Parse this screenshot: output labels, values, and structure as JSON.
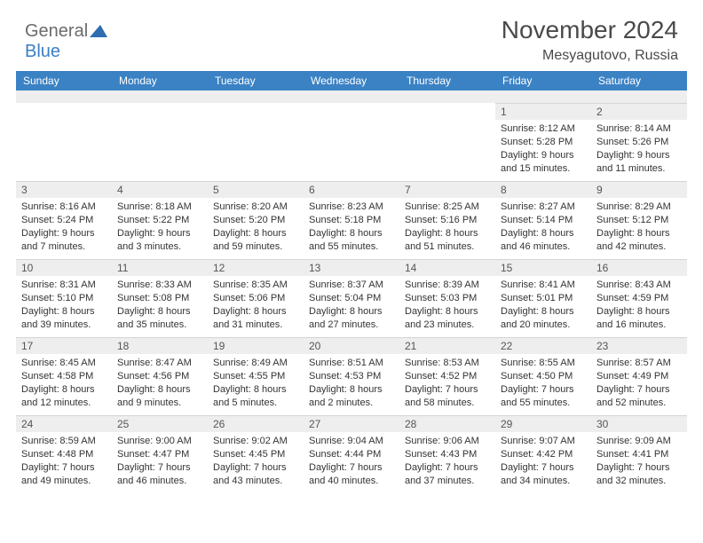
{
  "logo": {
    "text1": "General",
    "text2": "Blue",
    "color_gray": "#6b6b6b",
    "color_blue": "#3b7fc4",
    "shape_color": "#2f6db0"
  },
  "title": "November 2024",
  "location": "Mesyagutovo, Russia",
  "header_bg": "#3b82c4",
  "header_fg": "#ffffff",
  "daynum_bg": "#eeeeee",
  "text_color": "#333333",
  "day_names": [
    "Sunday",
    "Monday",
    "Tuesday",
    "Wednesday",
    "Thursday",
    "Friday",
    "Saturday"
  ],
  "weeks": [
    [
      null,
      null,
      null,
      null,
      null,
      {
        "n": "1",
        "sr": "Sunrise: 8:12 AM",
        "ss": "Sunset: 5:28 PM",
        "d1": "Daylight: 9 hours",
        "d2": "and 15 minutes."
      },
      {
        "n": "2",
        "sr": "Sunrise: 8:14 AM",
        "ss": "Sunset: 5:26 PM",
        "d1": "Daylight: 9 hours",
        "d2": "and 11 minutes."
      }
    ],
    [
      {
        "n": "3",
        "sr": "Sunrise: 8:16 AM",
        "ss": "Sunset: 5:24 PM",
        "d1": "Daylight: 9 hours",
        "d2": "and 7 minutes."
      },
      {
        "n": "4",
        "sr": "Sunrise: 8:18 AM",
        "ss": "Sunset: 5:22 PM",
        "d1": "Daylight: 9 hours",
        "d2": "and 3 minutes."
      },
      {
        "n": "5",
        "sr": "Sunrise: 8:20 AM",
        "ss": "Sunset: 5:20 PM",
        "d1": "Daylight: 8 hours",
        "d2": "and 59 minutes."
      },
      {
        "n": "6",
        "sr": "Sunrise: 8:23 AM",
        "ss": "Sunset: 5:18 PM",
        "d1": "Daylight: 8 hours",
        "d2": "and 55 minutes."
      },
      {
        "n": "7",
        "sr": "Sunrise: 8:25 AM",
        "ss": "Sunset: 5:16 PM",
        "d1": "Daylight: 8 hours",
        "d2": "and 51 minutes."
      },
      {
        "n": "8",
        "sr": "Sunrise: 8:27 AM",
        "ss": "Sunset: 5:14 PM",
        "d1": "Daylight: 8 hours",
        "d2": "and 46 minutes."
      },
      {
        "n": "9",
        "sr": "Sunrise: 8:29 AM",
        "ss": "Sunset: 5:12 PM",
        "d1": "Daylight: 8 hours",
        "d2": "and 42 minutes."
      }
    ],
    [
      {
        "n": "10",
        "sr": "Sunrise: 8:31 AM",
        "ss": "Sunset: 5:10 PM",
        "d1": "Daylight: 8 hours",
        "d2": "and 39 minutes."
      },
      {
        "n": "11",
        "sr": "Sunrise: 8:33 AM",
        "ss": "Sunset: 5:08 PM",
        "d1": "Daylight: 8 hours",
        "d2": "and 35 minutes."
      },
      {
        "n": "12",
        "sr": "Sunrise: 8:35 AM",
        "ss": "Sunset: 5:06 PM",
        "d1": "Daylight: 8 hours",
        "d2": "and 31 minutes."
      },
      {
        "n": "13",
        "sr": "Sunrise: 8:37 AM",
        "ss": "Sunset: 5:04 PM",
        "d1": "Daylight: 8 hours",
        "d2": "and 27 minutes."
      },
      {
        "n": "14",
        "sr": "Sunrise: 8:39 AM",
        "ss": "Sunset: 5:03 PM",
        "d1": "Daylight: 8 hours",
        "d2": "and 23 minutes."
      },
      {
        "n": "15",
        "sr": "Sunrise: 8:41 AM",
        "ss": "Sunset: 5:01 PM",
        "d1": "Daylight: 8 hours",
        "d2": "and 20 minutes."
      },
      {
        "n": "16",
        "sr": "Sunrise: 8:43 AM",
        "ss": "Sunset: 4:59 PM",
        "d1": "Daylight: 8 hours",
        "d2": "and 16 minutes."
      }
    ],
    [
      {
        "n": "17",
        "sr": "Sunrise: 8:45 AM",
        "ss": "Sunset: 4:58 PM",
        "d1": "Daylight: 8 hours",
        "d2": "and 12 minutes."
      },
      {
        "n": "18",
        "sr": "Sunrise: 8:47 AM",
        "ss": "Sunset: 4:56 PM",
        "d1": "Daylight: 8 hours",
        "d2": "and 9 minutes."
      },
      {
        "n": "19",
        "sr": "Sunrise: 8:49 AM",
        "ss": "Sunset: 4:55 PM",
        "d1": "Daylight: 8 hours",
        "d2": "and 5 minutes."
      },
      {
        "n": "20",
        "sr": "Sunrise: 8:51 AM",
        "ss": "Sunset: 4:53 PM",
        "d1": "Daylight: 8 hours",
        "d2": "and 2 minutes."
      },
      {
        "n": "21",
        "sr": "Sunrise: 8:53 AM",
        "ss": "Sunset: 4:52 PM",
        "d1": "Daylight: 7 hours",
        "d2": "and 58 minutes."
      },
      {
        "n": "22",
        "sr": "Sunrise: 8:55 AM",
        "ss": "Sunset: 4:50 PM",
        "d1": "Daylight: 7 hours",
        "d2": "and 55 minutes."
      },
      {
        "n": "23",
        "sr": "Sunrise: 8:57 AM",
        "ss": "Sunset: 4:49 PM",
        "d1": "Daylight: 7 hours",
        "d2": "and 52 minutes."
      }
    ],
    [
      {
        "n": "24",
        "sr": "Sunrise: 8:59 AM",
        "ss": "Sunset: 4:48 PM",
        "d1": "Daylight: 7 hours",
        "d2": "and 49 minutes."
      },
      {
        "n": "25",
        "sr": "Sunrise: 9:00 AM",
        "ss": "Sunset: 4:47 PM",
        "d1": "Daylight: 7 hours",
        "d2": "and 46 minutes."
      },
      {
        "n": "26",
        "sr": "Sunrise: 9:02 AM",
        "ss": "Sunset: 4:45 PM",
        "d1": "Daylight: 7 hours",
        "d2": "and 43 minutes."
      },
      {
        "n": "27",
        "sr": "Sunrise: 9:04 AM",
        "ss": "Sunset: 4:44 PM",
        "d1": "Daylight: 7 hours",
        "d2": "and 40 minutes."
      },
      {
        "n": "28",
        "sr": "Sunrise: 9:06 AM",
        "ss": "Sunset: 4:43 PM",
        "d1": "Daylight: 7 hours",
        "d2": "and 37 minutes."
      },
      {
        "n": "29",
        "sr": "Sunrise: 9:07 AM",
        "ss": "Sunset: 4:42 PM",
        "d1": "Daylight: 7 hours",
        "d2": "and 34 minutes."
      },
      {
        "n": "30",
        "sr": "Sunrise: 9:09 AM",
        "ss": "Sunset: 4:41 PM",
        "d1": "Daylight: 7 hours",
        "d2": "and 32 minutes."
      }
    ]
  ]
}
